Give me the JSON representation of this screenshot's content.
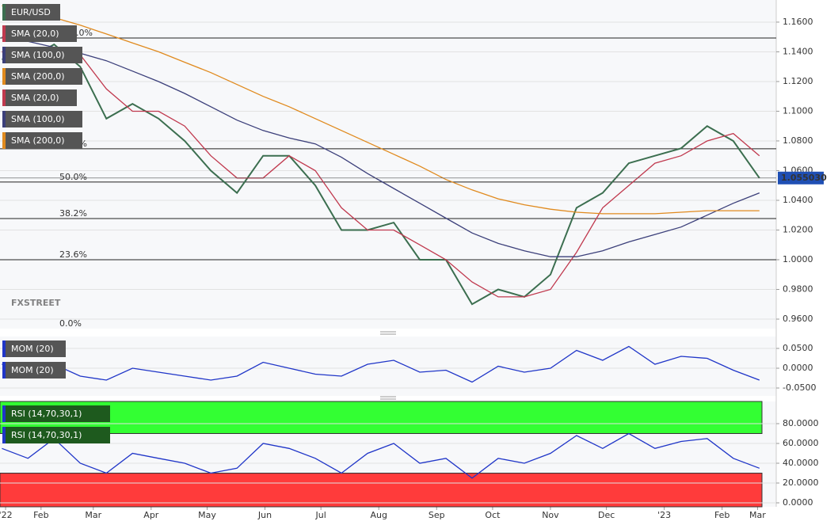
{
  "chart_data": [
    {
      "type": "line",
      "x": [
        10,
        24,
        38,
        52,
        66,
        80,
        94,
        108,
        122,
        136,
        150,
        164,
        178,
        192,
        206,
        220,
        234,
        248,
        262,
        276,
        290,
        304,
        318,
        332,
        346,
        360,
        374,
        388,
        402,
        416
      ],
      "xlim": [
        9,
        425
      ],
      "xticks": [
        {
          "value": 12,
          "label": "'22"
        },
        {
          "value": 31,
          "label": "Feb"
        },
        {
          "value": 59,
          "label": "Mar"
        },
        {
          "value": 90,
          "label": "Apr"
        },
        {
          "value": 120,
          "label": "May"
        },
        {
          "value": 151,
          "label": "Jun"
        },
        {
          "value": 181,
          "label": "Jul"
        },
        {
          "value": 212,
          "label": "Aug"
        },
        {
          "value": 243,
          "label": "Sep"
        },
        {
          "value": 273,
          "label": "Oct"
        },
        {
          "value": 304,
          "label": "Nov"
        },
        {
          "value": 334,
          "label": "Dec"
        },
        {
          "value": 365,
          "label": "'23"
        },
        {
          "value": 396,
          "label": "Feb"
        },
        {
          "value": 415,
          "label": "Mar"
        }
      ],
      "ylim": [
        0.9536,
        1.1749
      ],
      "yticks": [
        {
          "value": 0.96,
          "label": "0.9600"
        },
        {
          "value": 0.98,
          "label": "0.9800"
        },
        {
          "value": 1.0,
          "label": "1.0000"
        },
        {
          "value": 1.02,
          "label": "1.0200"
        },
        {
          "value": 1.04,
          "label": "1.0400"
        },
        {
          "value": 1.06,
          "label": "1.0600"
        },
        {
          "value": 1.08,
          "label": "1.0800"
        },
        {
          "value": 1.1,
          "label": "1.1000"
        },
        {
          "value": 1.12,
          "label": "1.1200"
        },
        {
          "value": 1.14,
          "label": "1.1400"
        },
        {
          "value": 1.16,
          "label": "1.1600"
        }
      ],
      "grid": true,
      "series": [
        {
          "name": "EUR/USD",
          "color": "#3b6e4f",
          "values": [
            1.135,
            1.135,
            1.145,
            1.13,
            1.095,
            1.105,
            1.095,
            1.08,
            1.06,
            1.045,
            1.07,
            1.07,
            1.05,
            1.02,
            1.02,
            1.025,
            1.0,
            1.0,
            0.97,
            0.98,
            0.975,
            0.99,
            1.035,
            1.045,
            1.065,
            1.07,
            1.075,
            1.09,
            1.08,
            1.055
          ]
        },
        {
          "name": "SMA (20,0)",
          "color": "#c0394e",
          "values": [
            1.14,
            1.135,
            1.14,
            1.138,
            1.115,
            1.1,
            1.1,
            1.09,
            1.07,
            1.055,
            1.055,
            1.07,
            1.06,
            1.035,
            1.02,
            1.02,
            1.01,
            1.0,
            0.985,
            0.975,
            0.975,
            0.98,
            1.005,
            1.035,
            1.05,
            1.065,
            1.07,
            1.08,
            1.085,
            1.07
          ]
        },
        {
          "name": "SMA (100,0)",
          "color": "#3b3f7a",
          "values": [
            1.15,
            1.147,
            1.143,
            1.139,
            1.134,
            1.127,
            1.12,
            1.112,
            1.103,
            1.094,
            1.087,
            1.082,
            1.078,
            1.069,
            1.058,
            1.048,
            1.038,
            1.028,
            1.018,
            1.011,
            1.006,
            1.002,
            1.002,
            1.006,
            1.012,
            1.017,
            1.022,
            1.03,
            1.038,
            1.045
          ]
        },
        {
          "name": "SMA (200,0)",
          "color": "#e08a1e",
          "values": [
            1.171,
            1.167,
            1.163,
            1.158,
            1.152,
            1.146,
            1.14,
            1.133,
            1.126,
            1.118,
            1.11,
            1.103,
            1.095,
            1.087,
            1.079,
            1.071,
            1.063,
            1.054,
            1.047,
            1.041,
            1.037,
            1.034,
            1.032,
            1.031,
            1.031,
            1.031,
            1.032,
            1.033,
            1.033,
            1.033
          ]
        }
      ],
      "levels": [
        {
          "value": 1.1493,
          "label": "100.0%"
        },
        {
          "value": 1.0747,
          "label": "61.8%"
        },
        {
          "value": 1.0523,
          "label": "50.0%"
        },
        {
          "value": 1.0277,
          "label": "38.2%"
        },
        {
          "value": 1.0,
          "label": "23.6%"
        },
        {
          "value": 0.9536,
          "label": "0.0%"
        }
      ],
      "last_price": {
        "value": 1.05503,
        "label": "1.055030"
      },
      "watermark": "FXSTREET"
    },
    {
      "type": "line",
      "ylim": [
        -0.07,
        0.08
      ],
      "yticks": [
        {
          "value": 0.05,
          "label": "0.0500"
        },
        {
          "value": 0,
          "label": "0.0000"
        },
        {
          "value": -0.05,
          "label": "-0.0500"
        }
      ],
      "grid": true,
      "series": [
        {
          "name": "MOM (20)",
          "color": "#1f35c8",
          "values": [
            0.01,
            -0.005,
            0.01,
            -0.02,
            -0.03,
            0.0,
            -0.01,
            -0.02,
            -0.03,
            -0.02,
            0.015,
            0.0,
            -0.015,
            -0.02,
            0.01,
            0.02,
            -0.01,
            -0.005,
            -0.035,
            0.005,
            -0.01,
            0.0,
            0.045,
            0.02,
            0.055,
            0.01,
            0.03,
            0.025,
            -0.005,
            -0.03
          ]
        }
      ]
    },
    {
      "type": "line",
      "ylim": [
        -4,
        102.4
      ],
      "yticks": [
        {
          "value": 80,
          "label": "80.0000"
        },
        {
          "value": 60,
          "label": "60.0000"
        },
        {
          "value": 40,
          "label": "40.0000"
        },
        {
          "value": 20,
          "label": "20.0000"
        },
        {
          "value": 0,
          "label": "0.0000"
        }
      ],
      "grid": true,
      "overbought": 70,
      "oversold": 30,
      "series": [
        {
          "name": "RSI (14,70,30,1)",
          "color": "#1f35c8",
          "values": [
            55,
            45,
            65,
            40,
            30,
            50,
            45,
            40,
            30,
            35,
            60,
            55,
            45,
            30,
            50,
            60,
            40,
            45,
            25,
            45,
            40,
            50,
            68,
            55,
            70,
            55,
            62,
            65,
            45,
            35
          ]
        }
      ]
    }
  ]
}
